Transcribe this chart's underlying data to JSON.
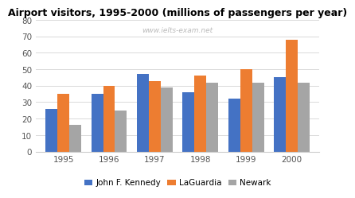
{
  "title": "Airport visitors, 1995-2000 (millions of passengers per year)",
  "watermark": "www.ielts-exam.net",
  "years": [
    "1995",
    "1996",
    "1997",
    "1998",
    "1999",
    "2000"
  ],
  "series": {
    "John F. Kennedy": [
      26,
      35,
      47,
      36,
      32,
      45
    ],
    "LaGuardia": [
      35,
      40,
      43,
      46,
      50,
      68
    ],
    "Newark": [
      16,
      25,
      39,
      42,
      42,
      42
    ]
  },
  "colors": {
    "John F. Kennedy": "#4472C4",
    "LaGuardia": "#ED7D31",
    "Newark": "#A5A5A5"
  },
  "ylim": [
    0,
    80
  ],
  "yticks": [
    0,
    10,
    20,
    30,
    40,
    50,
    60,
    70,
    80
  ],
  "background_color": "#ffffff",
  "grid_color": "#d9d9d9",
  "title_fontsize": 9,
  "legend_fontsize": 7.5,
  "tick_fontsize": 7.5,
  "bar_width": 0.26,
  "group_width": 1.0
}
